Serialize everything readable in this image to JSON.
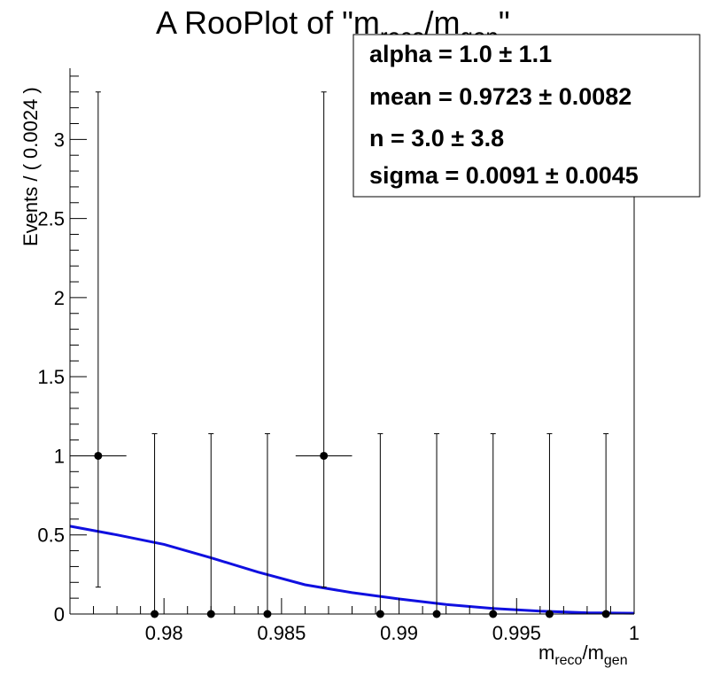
{
  "chart_data": {
    "type": "scatter",
    "title": {
      "pre": "A RooPlot of \"m",
      "sub1": "reco",
      "mid": "/m",
      "sub2": "gen",
      "post": "\""
    },
    "xlabel": {
      "m1": "m",
      "sub1": "reco",
      "slash": "/m",
      "sub2": "gen"
    },
    "ylabel": "Events / ( 0.0024 )",
    "xlim": [
      0.976,
      1.0
    ],
    "ylim": [
      0,
      3.45
    ],
    "x_ticks": [
      {
        "value": 0.98,
        "label": "0.98"
      },
      {
        "value": 0.985,
        "label": "0.985"
      },
      {
        "value": 0.99,
        "label": "0.99"
      },
      {
        "value": 0.995,
        "label": "0.995"
      },
      {
        "value": 1.0,
        "label": "1"
      }
    ],
    "y_ticks": [
      {
        "value": 0,
        "label": "0"
      },
      {
        "value": 0.5,
        "label": "0.5"
      },
      {
        "value": 1,
        "label": "1"
      },
      {
        "value": 1.5,
        "label": "1.5"
      },
      {
        "value": 2,
        "label": "2"
      },
      {
        "value": 2.5,
        "label": "2.5"
      },
      {
        "value": 3,
        "label": "3"
      }
    ],
    "bin_width": 0.0024,
    "points": [
      {
        "x": 0.9772,
        "y": 1,
        "ylow": 0.17,
        "yhigh": 3.3,
        "xerr": true
      },
      {
        "x": 0.9796,
        "y": 0,
        "ylow": 0,
        "yhigh": 1.14,
        "xerr": false
      },
      {
        "x": 0.982,
        "y": 0,
        "ylow": 0,
        "yhigh": 1.14,
        "xerr": false
      },
      {
        "x": 0.9844,
        "y": 0,
        "ylow": 0,
        "yhigh": 1.14,
        "xerr": false
      },
      {
        "x": 0.9868,
        "y": 1,
        "ylow": 0.17,
        "yhigh": 3.3,
        "xerr": true
      },
      {
        "x": 0.9892,
        "y": 0,
        "ylow": 0,
        "yhigh": 1.14,
        "xerr": false
      },
      {
        "x": 0.9916,
        "y": 0,
        "ylow": 0,
        "yhigh": 1.14,
        "xerr": false
      },
      {
        "x": 0.994,
        "y": 0,
        "ylow": 0,
        "yhigh": 1.14,
        "xerr": false
      },
      {
        "x": 0.9964,
        "y": 0,
        "ylow": 0,
        "yhigh": 1.14,
        "xerr": false
      },
      {
        "x": 0.9988,
        "y": 0,
        "ylow": 0,
        "yhigh": 1.14,
        "xerr": false
      }
    ],
    "fit_curve": [
      [
        0.976,
        0.555
      ],
      [
        0.978,
        0.5
      ],
      [
        0.98,
        0.44
      ],
      [
        0.982,
        0.355
      ],
      [
        0.984,
        0.265
      ],
      [
        0.986,
        0.185
      ],
      [
        0.988,
        0.135
      ],
      [
        0.99,
        0.095
      ],
      [
        0.992,
        0.06
      ],
      [
        0.994,
        0.035
      ],
      [
        0.996,
        0.018
      ],
      [
        0.998,
        0.008
      ],
      [
        1.0,
        0.005
      ]
    ],
    "fit_color": "#1010e0",
    "stats": [
      "alpha =  1.0 ± 1.1",
      "mean =  0.9723 ± 0.0082",
      "n =  3.0 ± 3.8",
      "sigma =  0.0091 ± 0.0045"
    ]
  }
}
